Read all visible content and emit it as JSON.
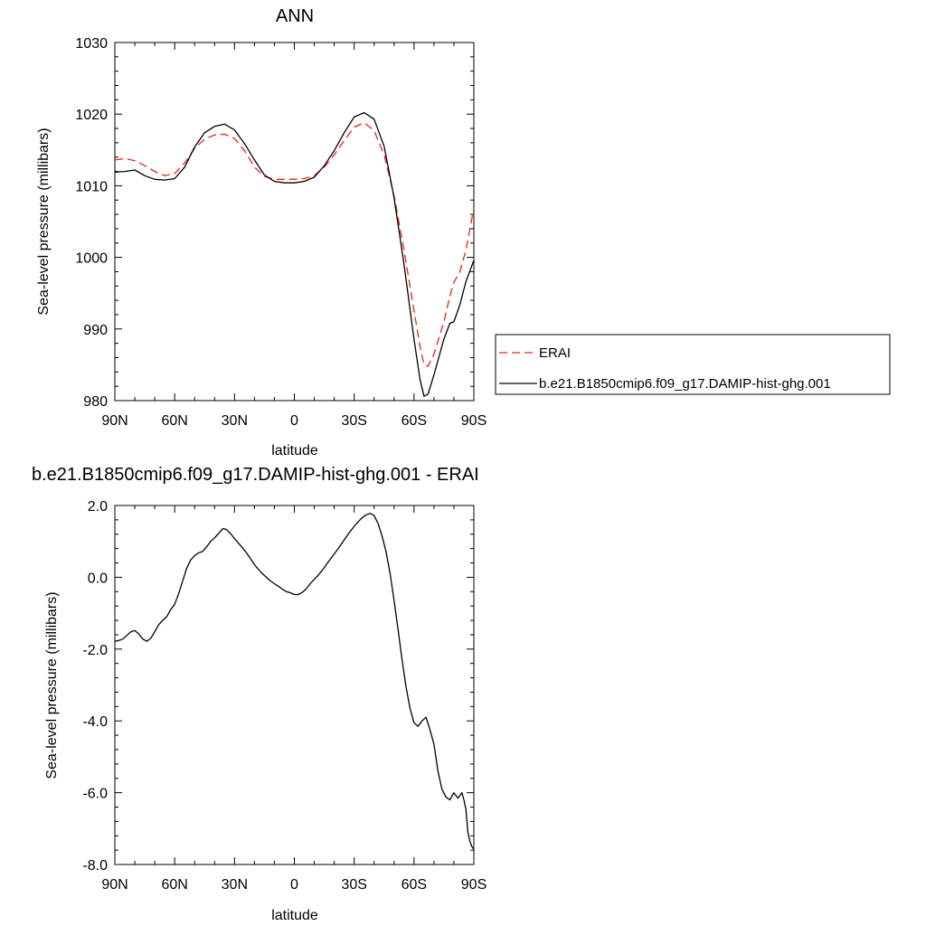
{
  "chart_data": [
    {
      "type": "line",
      "title": "ANN",
      "xlabel": "latitude",
      "ylabel": "Sea-level pressure (millibars)",
      "xlim": [
        90,
        -90
      ],
      "ylim": [
        980,
        1030
      ],
      "x_ticks": [
        90,
        60,
        30,
        0,
        -30,
        -60,
        -90
      ],
      "x_tick_labels": [
        "90N",
        "60N",
        "30N",
        "0",
        "30S",
        "60S",
        "90S"
      ],
      "y_ticks": [
        980,
        990,
        1000,
        1010,
        1020,
        1030
      ],
      "y_tick_labels": [
        "980",
        "990",
        "1000",
        "1010",
        "1020",
        "1030"
      ],
      "grid": false,
      "legend_position": "right",
      "series": [
        {
          "name": "ERAI",
          "color": "#e8221c",
          "dash": "dashed",
          "x": [
            90,
            85,
            80,
            75,
            70,
            65,
            60,
            55,
            50,
            45,
            40,
            35,
            30,
            25,
            20,
            15,
            10,
            5,
            0,
            -5,
            -10,
            -15,
            -20,
            -25,
            -30,
            -35,
            -40,
            -45,
            -50,
            -55,
            -60,
            -63,
            -65,
            -67,
            -70,
            -75,
            -78,
            -80,
            -83,
            -86,
            -90
          ],
          "y": [
            1013.6,
            1013.8,
            1013.5,
            1012.8,
            1012.0,
            1011.4,
            1011.7,
            1013.2,
            1015.2,
            1016.5,
            1017.1,
            1017.2,
            1016.6,
            1014.9,
            1012.6,
            1011.3,
            1010.9,
            1010.9,
            1010.9,
            1011.0,
            1011.4,
            1012.6,
            1014.3,
            1016.3,
            1018.2,
            1018.8,
            1017.7,
            1014.3,
            1008.6,
            1001.0,
            992.6,
            987.6,
            985.0,
            984.8,
            986.5,
            991.0,
            994.6,
            996.5,
            998.0,
            1001.0,
            1006.9
          ]
        },
        {
          "name": "b.e21.B1850cmip6.f09_g17.DAMIP-hist-ghg.001",
          "color": "#000000",
          "dash": "solid",
          "x": [
            90,
            85,
            80,
            75,
            70,
            65,
            60,
            55,
            50,
            45,
            40,
            35,
            30,
            25,
            20,
            15,
            10,
            5,
            0,
            -5,
            -10,
            -15,
            -20,
            -25,
            -30,
            -35,
            -40,
            -45,
            -50,
            -55,
            -60,
            -63,
            -65,
            -67,
            -70,
            -75,
            -78,
            -80,
            -83,
            -86,
            -90
          ],
          "y": [
            1011.9,
            1012.0,
            1012.2,
            1011.4,
            1010.9,
            1010.8,
            1011.0,
            1012.6,
            1015.4,
            1017.4,
            1018.3,
            1018.6,
            1017.8,
            1015.9,
            1013.6,
            1011.5,
            1010.6,
            1010.4,
            1010.4,
            1010.6,
            1011.2,
            1012.8,
            1014.9,
            1017.4,
            1019.6,
            1020.2,
            1019.3,
            1015.5,
            1008.3,
            999.0,
            988.6,
            983.0,
            980.6,
            980.9,
            983.6,
            988.6,
            990.8,
            991.0,
            993.4,
            996.6,
            999.6
          ]
        }
      ]
    },
    {
      "type": "line",
      "title": "b.e21.B1850cmip6.f09_g17.DAMIP-hist-ghg.001 - ERAI",
      "xlabel": "latitude",
      "ylabel": "Sea-level pressure (millibars)",
      "xlim": [
        90,
        -90
      ],
      "ylim": [
        -8.0,
        2.0
      ],
      "x_ticks": [
        90,
        60,
        30,
        0,
        -30,
        -60,
        -90
      ],
      "x_tick_labels": [
        "90N",
        "60N",
        "30N",
        "0",
        "30S",
        "60S",
        "90S"
      ],
      "y_ticks": [
        -8.0,
        -6.0,
        -4.0,
        -2.0,
        0.0,
        2.0
      ],
      "y_tick_labels": [
        "-8.0",
        "-6.0",
        "-4.0",
        "-2.0",
        "0.0",
        "2.0"
      ],
      "grid": false,
      "series": [
        {
          "color": "#000000",
          "dash": "solid",
          "x": [
            90,
            88,
            86,
            84,
            82,
            80,
            78,
            76,
            74,
            72,
            70,
            68,
            66,
            64,
            62,
            60,
            58,
            56,
            54,
            52,
            50,
            48,
            46,
            44,
            42,
            40,
            38,
            36,
            35,
            34,
            32,
            30,
            28,
            26,
            24,
            22,
            20,
            18,
            16,
            14,
            12,
            10,
            8,
            6,
            4,
            2,
            0,
            -2,
            -4,
            -6,
            -8,
            -10,
            -12,
            -14,
            -16,
            -18,
            -20,
            -22,
            -24,
            -26,
            -28,
            -30,
            -32,
            -34,
            -36,
            -38,
            -40,
            -42,
            -44,
            -46,
            -48,
            -50,
            -52,
            -54,
            -56,
            -58,
            -60,
            -62,
            -64,
            -66,
            -68,
            -70,
            -72,
            -74,
            -76,
            -78,
            -80,
            -82,
            -83,
            -84,
            -85,
            -86,
            -87,
            -88,
            -89,
            -90
          ],
          "y": [
            -1.78,
            -1.76,
            -1.72,
            -1.62,
            -1.52,
            -1.48,
            -1.58,
            -1.72,
            -1.78,
            -1.7,
            -1.52,
            -1.32,
            -1.2,
            -1.1,
            -0.9,
            -0.75,
            -0.45,
            -0.1,
            0.25,
            0.48,
            0.6,
            0.68,
            0.72,
            0.85,
            1.0,
            1.1,
            1.22,
            1.35,
            1.35,
            1.33,
            1.22,
            1.08,
            0.95,
            0.82,
            0.68,
            0.52,
            0.35,
            0.22,
            0.1,
            0.0,
            -0.1,
            -0.18,
            -0.25,
            -0.33,
            -0.4,
            -0.43,
            -0.48,
            -0.48,
            -0.42,
            -0.32,
            -0.18,
            -0.05,
            0.06,
            0.2,
            0.35,
            0.5,
            0.65,
            0.8,
            0.96,
            1.12,
            1.28,
            1.42,
            1.55,
            1.66,
            1.74,
            1.78,
            1.72,
            1.5,
            1.15,
            0.7,
            0.1,
            -0.65,
            -1.45,
            -2.3,
            -3.05,
            -3.65,
            -4.05,
            -4.15,
            -4.0,
            -3.9,
            -4.25,
            -4.65,
            -5.4,
            -5.9,
            -6.12,
            -6.2,
            -6.0,
            -6.15,
            -6.08,
            -6.0,
            -6.2,
            -6.45,
            -7.1,
            -7.35,
            -7.5,
            -7.58
          ]
        }
      ]
    }
  ]
}
